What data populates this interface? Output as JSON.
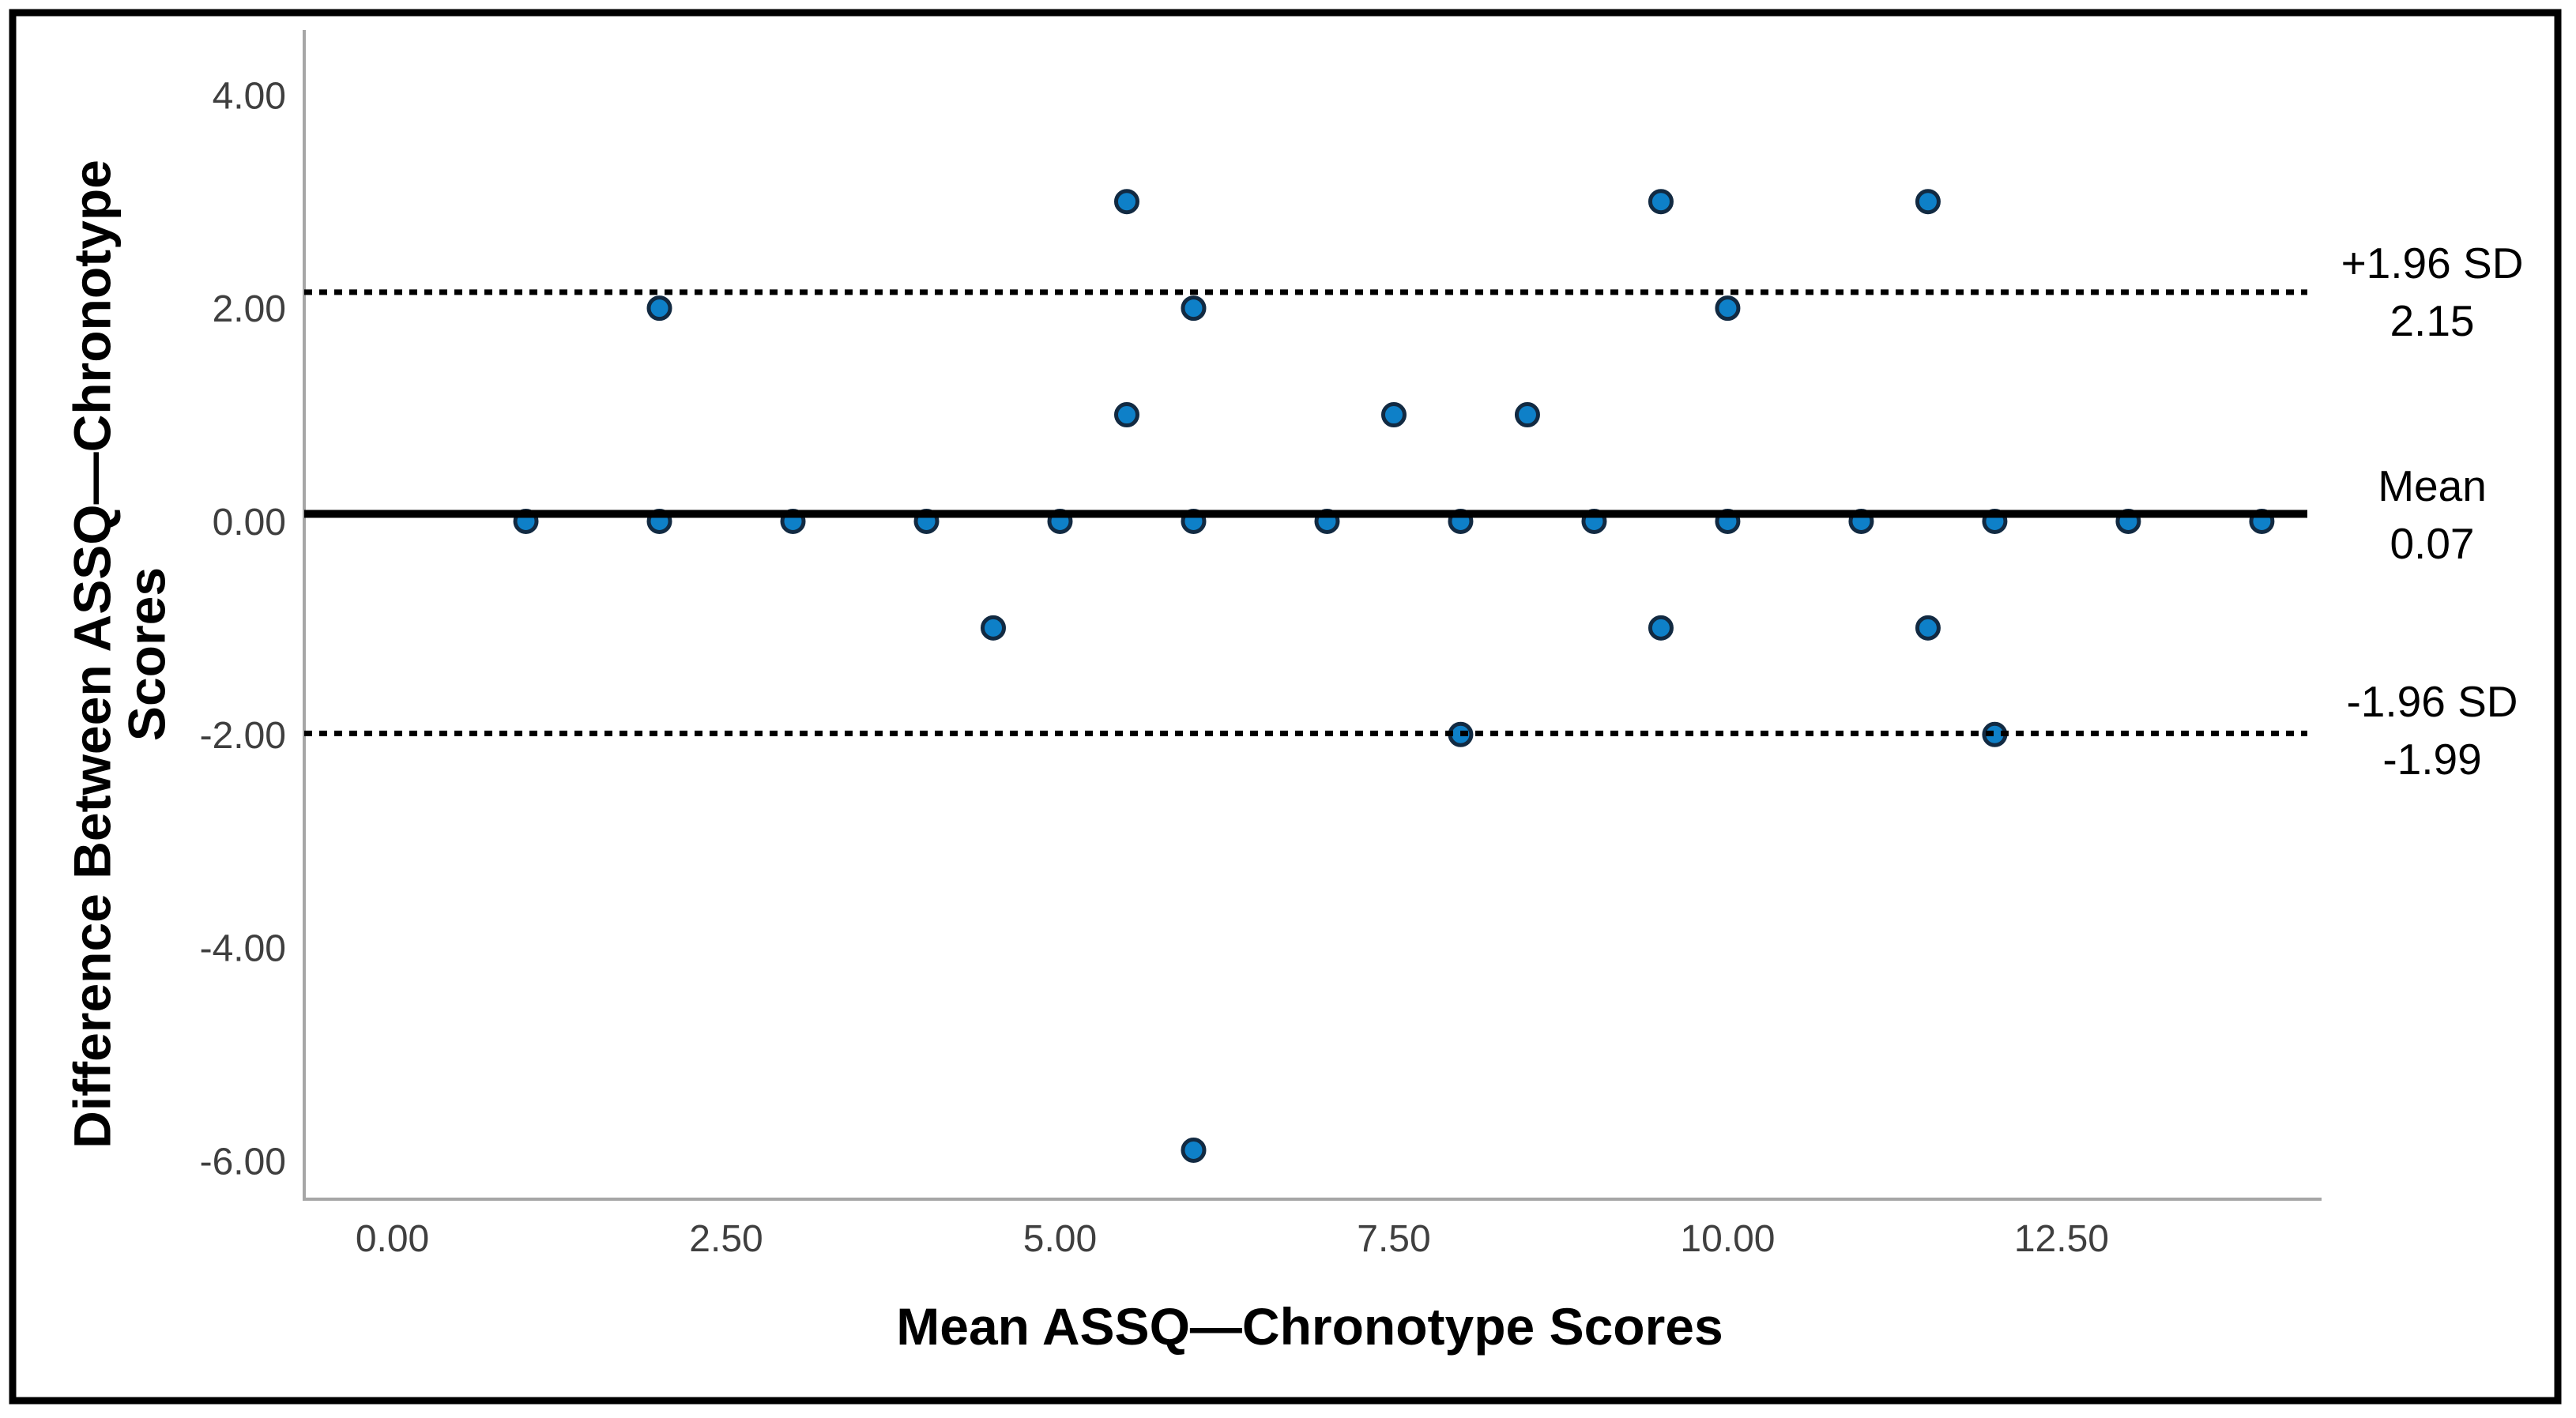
{
  "figure": {
    "description": "Bland-Altman scatter plot with mean difference line and 95% limits of agreement"
  },
  "chart_data": {
    "type": "scatter",
    "title": "",
    "xlabel": "Mean ASSQ—Chronotype Scores",
    "ylabel": "Difference Between ASSQ—Chronotype Scores",
    "ylabel_lines": [
      "Difference Between ASSQ—Chronotype",
      "Scores"
    ],
    "xlim": [
      -0.66,
      14.4
    ],
    "ylim": [
      -6.36,
      4.61
    ],
    "grid": false,
    "legend": "none",
    "x_ticks": [
      {
        "value": 0,
        "label": "0.00"
      },
      {
        "value": 2.5,
        "label": "2.50"
      },
      {
        "value": 5,
        "label": "5.00"
      },
      {
        "value": 7.5,
        "label": "7.50"
      },
      {
        "value": 10,
        "label": "10.00"
      },
      {
        "value": 12.5,
        "label": "12.50"
      }
    ],
    "y_ticks": [
      {
        "value": 4,
        "label": "4.00"
      },
      {
        "value": 2,
        "label": "2.00"
      },
      {
        "value": 0,
        "label": "0.00"
      },
      {
        "value": -2,
        "label": "-2.00"
      },
      {
        "value": -4,
        "label": "-4.00"
      },
      {
        "value": -6,
        "label": "-6.00"
      }
    ],
    "reference_lines": [
      {
        "id": "upper_loa",
        "label": "+1.96 SD",
        "value": 2.15,
        "value_label": "2.15",
        "style": "dotted"
      },
      {
        "id": "mean",
        "label": "Mean",
        "value": 0.07,
        "value_label": "0.07",
        "style": "solid"
      },
      {
        "id": "lower_loa",
        "label": "-1.96 SD",
        "value": -1.99,
        "value_label": "-1.99",
        "style": "dotted"
      }
    ],
    "points": [
      [
        1,
        0
      ],
      [
        2,
        0
      ],
      [
        3,
        0
      ],
      [
        4,
        0
      ],
      [
        5,
        0
      ],
      [
        6,
        0
      ],
      [
        7,
        0
      ],
      [
        8,
        0
      ],
      [
        9,
        0
      ],
      [
        10,
        0
      ],
      [
        11,
        0
      ],
      [
        12,
        0
      ],
      [
        13,
        0
      ],
      [
        14,
        0
      ],
      [
        2,
        2
      ],
      [
        6,
        2
      ],
      [
        10,
        2
      ],
      [
        5.5,
        3
      ],
      [
        9.5,
        3
      ],
      [
        11.5,
        3
      ],
      [
        5.5,
        1
      ],
      [
        7.5,
        1
      ],
      [
        8.5,
        1
      ],
      [
        4.5,
        -1
      ],
      [
        9.5,
        -1
      ],
      [
        11.5,
        -1
      ],
      [
        8,
        -2
      ],
      [
        12,
        -2
      ],
      [
        6,
        -5.9
      ]
    ],
    "colors": {
      "point_fill": "#0e80c8",
      "point_stroke": "#122a42",
      "axis_line": "#a6a6a6",
      "tick_text": "#3f3f3f",
      "text": "#000000",
      "border": "#000000",
      "background": "#ffffff"
    }
  }
}
